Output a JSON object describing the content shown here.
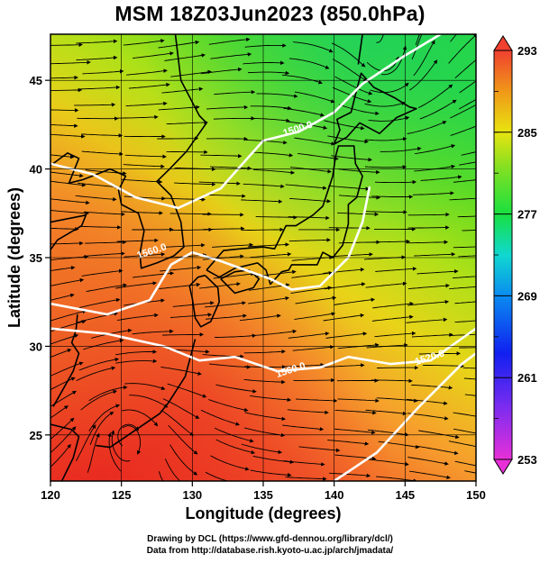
{
  "header": {
    "title": "MSM 18Z03Jun2023 (850.0hPa)"
  },
  "axes": {
    "xlabel": "Longitude (degrees)",
    "ylabel": "Latitude (degrees)",
    "xticks": [
      120,
      125,
      130,
      135,
      140,
      145,
      150
    ],
    "yticks": [
      25,
      30,
      35,
      40,
      45
    ],
    "xlim": [
      120,
      150
    ],
    "ylim": [
      22.4,
      47.6
    ]
  },
  "colorbar": {
    "range": [
      253,
      293
    ],
    "tick_labels": [
      "293",
      "285",
      "277",
      "269",
      "261",
      "253"
    ],
    "tick_values": [
      293,
      285,
      277,
      269,
      261,
      253
    ]
  },
  "contours": [
    {
      "label": "1560.0",
      "lon": 137.0,
      "lat": 28.5
    },
    {
      "label": "1520.0",
      "lon": 146.8,
      "lat": 29.2
    },
    {
      "label": "1560.0",
      "lon": 127.2,
      "lat": 35.2
    },
    {
      "label": "1500.0",
      "lon": 137.5,
      "lat": 42.1
    }
  ],
  "credits": {
    "line1": "Drawing by DCL (https://www.gfd-dennou.org/library/dcl/)",
    "line2": "Data from http://database.rish.kyoto-u.ac.jp/arch/jmadata/"
  }
}
